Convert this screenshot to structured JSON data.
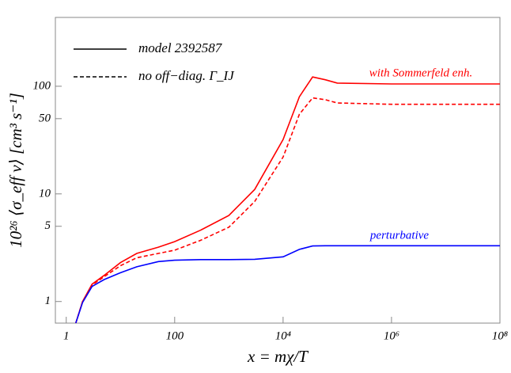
{
  "chart_data": {
    "type": "line",
    "xlabel": "x = mχ/T",
    "ylabel": "10²⁶ ⟨σ_eff v⟩  [cm³ s⁻¹]",
    "x": [
      1.5,
      2,
      3,
      5,
      10,
      20,
      50,
      100,
      300,
      1000,
      3000,
      10000,
      20000,
      35000,
      60000,
      100000,
      1000000,
      10000000,
      100000000
    ],
    "series": [
      {
        "name": "model 2392587",
        "color": "#ff0000",
        "dash": "solid",
        "values": [
          0.63,
          1.0,
          1.45,
          1.75,
          2.3,
          2.8,
          3.2,
          3.6,
          4.6,
          6.3,
          11,
          32,
          80,
          122,
          115,
          107,
          105,
          105,
          105
        ]
      },
      {
        "name": "no off−diag. Γ_IJ",
        "color": "#ff0000",
        "dash": "dashed",
        "values": [
          0.63,
          1.0,
          1.42,
          1.7,
          2.15,
          2.55,
          2.8,
          3.0,
          3.7,
          4.9,
          8.5,
          22,
          55,
          78,
          75,
          70,
          68,
          68,
          68
        ]
      },
      {
        "color": "#0000ff",
        "dash": "solid",
        "values": [
          0.63,
          0.98,
          1.38,
          1.6,
          1.85,
          2.1,
          2.35,
          2.42,
          2.45,
          2.45,
          2.47,
          2.6,
          3.05,
          3.28,
          3.3,
          3.3,
          3.3,
          3.3,
          3.3
        ]
      }
    ],
    "annotations": [
      {
        "text": "with Sommerfeld enh.",
        "color": "#ff0000"
      },
      {
        "text": "perturbative",
        "color": "#0000ff"
      }
    ],
    "xscale": "log",
    "yscale": "log",
    "xlim": [
      0.63,
      100000000
    ],
    "ylim": [
      0.63,
      436
    ],
    "xticks": [
      1,
      100,
      {
        "value": 10000,
        "label": "10⁴"
      },
      {
        "value": 1000000,
        "label": "10⁶"
      },
      {
        "value": 100000000,
        "label": "10⁸"
      }
    ],
    "yticks": [
      1,
      5,
      10,
      50,
      100
    ]
  }
}
